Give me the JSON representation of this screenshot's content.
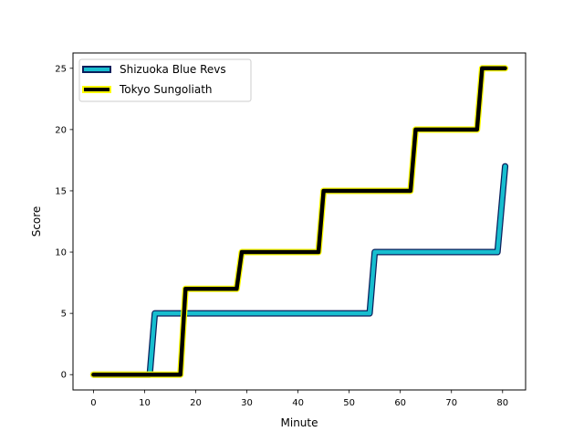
{
  "chart_data": {
    "type": "line",
    "title": "",
    "xlabel": "Minute",
    "ylabel": "Score",
    "xlim": [
      -4,
      84.5
    ],
    "ylim": [
      -1.25,
      26.25
    ],
    "x_ticks": [
      0,
      10,
      20,
      30,
      40,
      50,
      60,
      70,
      80
    ],
    "y_ticks": [
      0,
      5,
      10,
      15,
      20,
      25
    ],
    "grid": false,
    "legend_position": "upper-left",
    "series": [
      {
        "name": "Shizuoka Blue Revs",
        "fill_color": "#17becf",
        "edge_color": "#0b1f5c",
        "points": [
          [
            0,
            0
          ],
          [
            11,
            0
          ],
          [
            12,
            5
          ],
          [
            54,
            5
          ],
          [
            55,
            10
          ],
          [
            79,
            10
          ],
          [
            80.5,
            17
          ]
        ]
      },
      {
        "name": "Tokyo Sungoliath",
        "fill_color": "#000000",
        "edge_color": "#ffff00",
        "points": [
          [
            0,
            0
          ],
          [
            17,
            0
          ],
          [
            18,
            7
          ],
          [
            28,
            7
          ],
          [
            29,
            10
          ],
          [
            44,
            10
          ],
          [
            45,
            15
          ],
          [
            62,
            15
          ],
          [
            63,
            20
          ],
          [
            75,
            20
          ],
          [
            76,
            25
          ],
          [
            80.5,
            25
          ]
        ]
      }
    ]
  }
}
